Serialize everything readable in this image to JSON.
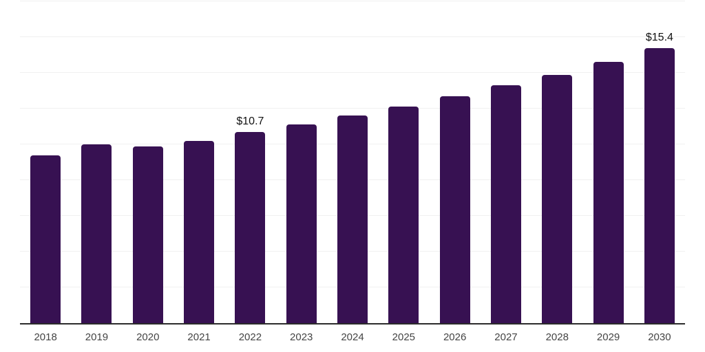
{
  "chart_data": {
    "type": "bar",
    "title": "",
    "xlabel": "",
    "ylabel": "",
    "categories": [
      "2018",
      "2019",
      "2020",
      "2021",
      "2022",
      "2023",
      "2024",
      "2025",
      "2026",
      "2027",
      "2028",
      "2029",
      "2030"
    ],
    "values": [
      9.4,
      10.0,
      9.9,
      10.2,
      10.7,
      11.1,
      11.6,
      12.1,
      12.7,
      13.3,
      13.9,
      14.6,
      15.4
    ],
    "value_labels": [
      {
        "category": "2022",
        "text": "$10.7"
      },
      {
        "category": "2030",
        "text": "$15.4"
      }
    ],
    "ylim": [
      0,
      18
    ],
    "grid_step": 2,
    "grid": true,
    "legend": false,
    "colors": {
      "bar": "#371152",
      "grid": "#f0f0f0",
      "axis": "#2b2b2b",
      "tick_label": "#444444",
      "value_label": "#111111",
      "background": "#ffffff"
    }
  }
}
